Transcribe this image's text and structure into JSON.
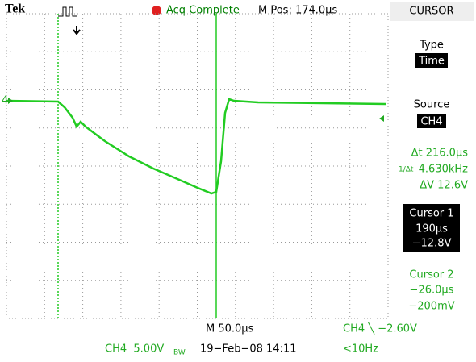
{
  "header": {
    "brand": "Tek",
    "status": "Acq Complete",
    "position": "M Pos: 174.0µs",
    "menu_title": "CURSOR"
  },
  "channel_marker": "4",
  "menu": {
    "type_label": "Type",
    "type_value": "Time",
    "source_label": "Source",
    "source_value": "CH4",
    "delta_t": "Δt 216.0µs",
    "inv_delta_t_label": "1/Δt",
    "inv_delta_t": "4.630kHz",
    "delta_v": "ΔV 12.6V",
    "cursor1": {
      "label": "Cursor 1",
      "time": "190µs",
      "voltage": "−12.8V"
    },
    "cursor2": {
      "label": "Cursor 2",
      "time": "−26.0µs",
      "voltage": "−200mV"
    }
  },
  "footer": {
    "timebase": "M 50.0µs",
    "trigger": "CH4 ╲ −2.60V",
    "channel": "CH4  5.00V",
    "bandwidth": "BW",
    "date": "19−Feb−08 14:11",
    "trigger_freq": "<10Hz"
  }
}
